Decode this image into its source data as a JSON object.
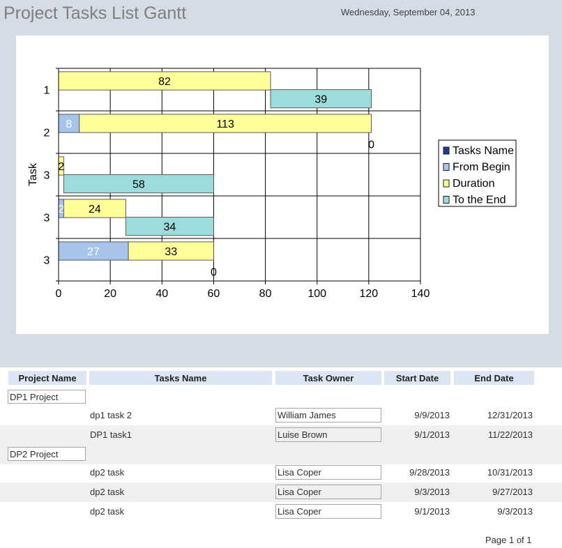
{
  "report": {
    "title": "Project Tasks List Gantt",
    "date": "Wednesday, September 04, 2013",
    "page": "Page 1 of 1"
  },
  "chart_data": {
    "type": "bar",
    "orientation": "horizontal",
    "stacked": true,
    "ylabel": "Task",
    "categories": [
      "1",
      "2",
      "3",
      "3",
      "3"
    ],
    "xlim": [
      0,
      140
    ],
    "xticks": [
      "0",
      "20",
      "40",
      "60",
      "80",
      "100",
      "120",
      "140"
    ],
    "grid": true,
    "legend_position": "right",
    "legend": [
      "Tasks Name",
      "From Begin",
      "Duration",
      "To the End"
    ],
    "series": [
      {
        "name": "Tasks Name",
        "values": [
          0,
          0,
          0,
          0,
          0
        ],
        "color": "#1f3a93"
      },
      {
        "name": "From Begin",
        "values": [
          0,
          8,
          0,
          2,
          27
        ],
        "color": "#a7c4ea"
      },
      {
        "name": "Duration",
        "values": [
          82,
          113,
          2,
          24,
          33
        ],
        "color": "#ffff99"
      },
      {
        "name": "To the End",
        "values": [
          39,
          0,
          58,
          34,
          0
        ],
        "color": "#9ddcdb"
      }
    ]
  },
  "table": {
    "columns": [
      "Project Name",
      "Tasks Name",
      "Task Owner",
      "Start Date",
      "End Date"
    ],
    "groups": [
      {
        "project": "DP1 Project",
        "rows": [
          {
            "task": "dp1 task 2",
            "owner": "William James",
            "start": "9/9/2013",
            "end": "12/31/2013"
          },
          {
            "task": "DP1 task1",
            "owner": "Luise Brown",
            "start": "9/1/2013",
            "end": "11/22/2013"
          }
        ]
      },
      {
        "project": "DP2 Project",
        "rows": [
          {
            "task": "dp2 task",
            "owner": "Lisa Coper",
            "start": "9/28/2013",
            "end": "10/31/2013"
          },
          {
            "task": "dp2 task",
            "owner": "Lisa Coper",
            "start": "9/3/2013",
            "end": "9/27/2013"
          },
          {
            "task": "dp2 task",
            "owner": "Lisa Coper",
            "start": "9/1/2013",
            "end": "9/3/2013"
          }
        ]
      }
    ]
  }
}
